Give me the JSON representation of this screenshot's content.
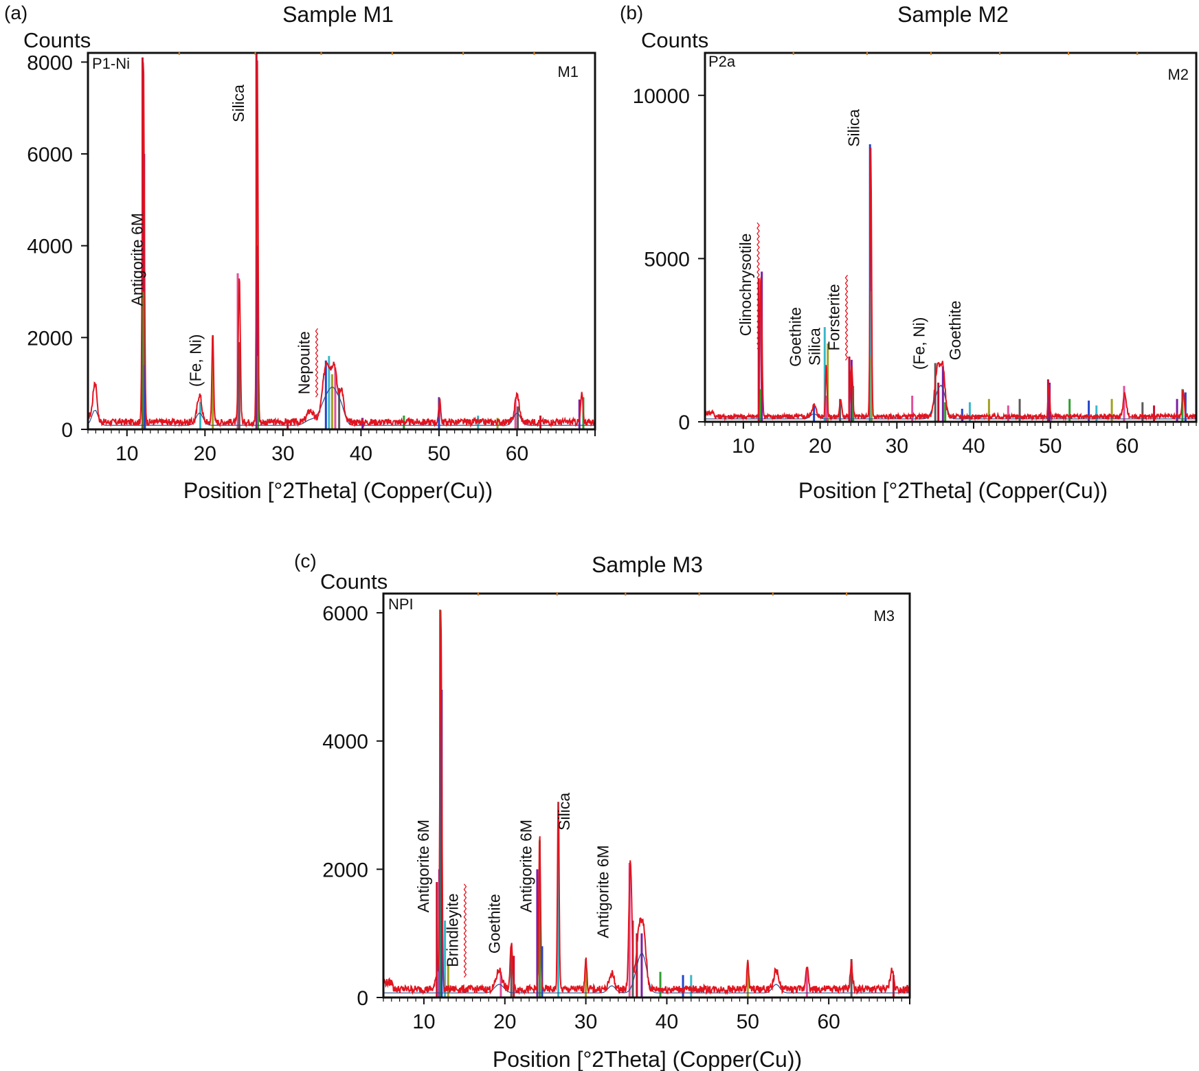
{
  "figure": {
    "colors": {
      "trace": "#e2141f",
      "baseline": "#2e4a8c",
      "frame": "#111111",
      "sticks": [
        "#c8102e",
        "#7a1fa2",
        "#2f9e2f",
        "#2244cc",
        "#38b8c8",
        "#a0a020",
        "#e0509a",
        "#5a5a5a"
      ],
      "hatch": "#e2141f"
    }
  },
  "chart_data": [
    {
      "type": "line",
      "panel_label": "(a)",
      "title": "Sample M1",
      "ylabel": "Counts",
      "xlabel": "Position [°2Theta] (Copper(Cu))",
      "corner_left": "P1-Ni",
      "corner_right": "M1",
      "xlim": [
        5,
        70
      ],
      "ylim": [
        0,
        8200
      ],
      "xticks": [
        10,
        20,
        30,
        40,
        50,
        60
      ],
      "yticks": [
        0,
        2000,
        4000,
        6000,
        8000
      ],
      "background": 160,
      "peaks": [
        [
          5.9,
          750,
          0.35
        ],
        [
          12.1,
          7950,
          0.18
        ],
        [
          19.3,
          600,
          0.4
        ],
        [
          21.0,
          1950,
          0.15
        ],
        [
          24.4,
          3200,
          0.18
        ],
        [
          26.7,
          8050,
          0.14
        ],
        [
          33.5,
          250,
          0.6
        ],
        [
          35.6,
          1300,
          0.7
        ],
        [
          36.6,
          1100,
          0.5
        ],
        [
          37.5,
          700,
          0.4
        ],
        [
          50.1,
          550,
          0.15
        ],
        [
          60.0,
          600,
          0.4
        ],
        [
          68.3,
          600,
          0.2
        ]
      ],
      "sticks": [
        [
          12.0,
          8100
        ],
        [
          12.2,
          6000
        ],
        [
          12.1,
          3000
        ],
        [
          12.3,
          1400
        ],
        [
          19.4,
          600
        ],
        [
          21.0,
          2050
        ],
        [
          24.2,
          3400
        ],
        [
          24.4,
          1900
        ],
        [
          26.6,
          8200
        ],
        [
          26.7,
          4000
        ],
        [
          26.8,
          1600
        ],
        [
          35.5,
          1500
        ],
        [
          35.9,
          1600
        ],
        [
          36.3,
          1200
        ],
        [
          36.7,
          1350
        ],
        [
          37.2,
          900
        ],
        [
          30.6,
          200
        ],
        [
          40.2,
          250
        ],
        [
          45.5,
          300
        ],
        [
          50.0,
          700
        ],
        [
          55.0,
          300
        ],
        [
          57.5,
          250
        ],
        [
          59.8,
          650
        ],
        [
          60.1,
          500
        ],
        [
          63.0,
          300
        ],
        [
          68.0,
          650
        ],
        [
          68.5,
          700
        ]
      ],
      "series_annotations": [
        {
          "text": "Antigorite 6M",
          "x": 12.0,
          "y": 3700,
          "hatched": false
        },
        {
          "text": "(Fe, Ni)",
          "x": 19.5,
          "y": 1500,
          "hatched": false
        },
        {
          "text": "Silica",
          "x": 25.0,
          "y": 7100,
          "hatched": false
        },
        {
          "text": "Nepouite",
          "x": 33.4,
          "y": 1450,
          "hatched": true
        }
      ]
    },
    {
      "type": "line",
      "panel_label": "(b)",
      "title": "Sample M2",
      "ylabel": "Counts",
      "xlabel": "Position [°2Theta] (Copper(Cu))",
      "corner_left": "P2a",
      "corner_right": "M2",
      "xlim": [
        5,
        69
      ],
      "ylim": [
        0,
        11300
      ],
      "xticks": [
        10,
        20,
        30,
        40,
        50,
        60
      ],
      "yticks": [
        0,
        5000,
        10000
      ],
      "background": 160,
      "peaks": [
        [
          12.3,
          4300,
          0.18
        ],
        [
          19.2,
          350,
          0.4
        ],
        [
          20.8,
          1600,
          0.15
        ],
        [
          22.7,
          500,
          0.2
        ],
        [
          24.1,
          1600,
          0.2
        ],
        [
          26.6,
          8200,
          0.14
        ],
        [
          35.3,
          1500,
          0.5
        ],
        [
          36.0,
          1400,
          0.4
        ],
        [
          49.8,
          1000,
          0.15
        ],
        [
          59.7,
          700,
          0.3
        ],
        [
          67.3,
          800,
          0.2
        ]
      ],
      "sticks": [
        [
          12.0,
          4400
        ],
        [
          12.4,
          4600
        ],
        [
          12.2,
          1000
        ],
        [
          19.2,
          500
        ],
        [
          20.6,
          2900
        ],
        [
          21.0,
          2400
        ],
        [
          20.8,
          800
        ],
        [
          22.6,
          700
        ],
        [
          23.8,
          2000
        ],
        [
          24.1,
          1900
        ],
        [
          24.3,
          1100
        ],
        [
          26.5,
          8500
        ],
        [
          26.6,
          4000
        ],
        [
          26.7,
          2000
        ],
        [
          32.0,
          800
        ],
        [
          35.0,
          1800
        ],
        [
          35.4,
          1200
        ],
        [
          36.0,
          1700
        ],
        [
          36.3,
          600
        ],
        [
          38.5,
          400
        ],
        [
          39.5,
          600
        ],
        [
          42.0,
          700
        ],
        [
          44.5,
          500
        ],
        [
          46.0,
          700
        ],
        [
          49.7,
          1300
        ],
        [
          49.9,
          1200
        ],
        [
          52.5,
          700
        ],
        [
          55.0,
          650
        ],
        [
          56.0,
          500
        ],
        [
          58.0,
          700
        ],
        [
          59.6,
          1100
        ],
        [
          62.0,
          600
        ],
        [
          63.5,
          500
        ],
        [
          66.5,
          700
        ],
        [
          67.2,
          1000
        ],
        [
          67.6,
          900
        ]
      ],
      "series_annotations": [
        {
          "text": "Clinochrysotile",
          "x": 11.0,
          "y": 4200,
          "hatched": true
        },
        {
          "text": "Goethite",
          "x": 17.5,
          "y": 2600,
          "hatched": false
        },
        {
          "text": "Silica",
          "x": 20.0,
          "y": 2300,
          "hatched": false
        },
        {
          "text": "Forsterite",
          "x": 22.5,
          "y": 3200,
          "hatched": true
        },
        {
          "text": "Silica",
          "x": 25.1,
          "y": 9000,
          "hatched": false
        },
        {
          "text": "(Fe, Ni)",
          "x": 33.6,
          "y": 2400,
          "hatched": false
        },
        {
          "text": "Goethite",
          "x": 38.3,
          "y": 2800,
          "hatched": false
        }
      ]
    },
    {
      "type": "line",
      "panel_label": "(c)",
      "title": "Sample M3",
      "ylabel": "Counts",
      "xlabel": "Position [°2Theta] (Copper(Cu))",
      "corner_left": "NPI",
      "corner_right": "M3",
      "xlim": [
        5,
        70
      ],
      "ylim": [
        0,
        6300
      ],
      "xticks": [
        10,
        20,
        30,
        40,
        50,
        60
      ],
      "yticks": [
        0,
        2000,
        4000,
        6000
      ],
      "background": 130,
      "peaks": [
        [
          11.7,
          300,
          0.3
        ],
        [
          12.1,
          5900,
          0.16
        ],
        [
          19.3,
          300,
          0.5
        ],
        [
          20.8,
          700,
          0.2
        ],
        [
          24.3,
          2400,
          0.15
        ],
        [
          26.6,
          2950,
          0.14
        ],
        [
          30.0,
          500,
          0.15
        ],
        [
          33.2,
          250,
          0.4
        ],
        [
          35.5,
          2000,
          0.25
        ],
        [
          36.6,
          950,
          0.5
        ],
        [
          37.2,
          700,
          0.4
        ],
        [
          50.0,
          450,
          0.15
        ],
        [
          53.5,
          300,
          0.4
        ],
        [
          57.3,
          400,
          0.2
        ],
        [
          62.8,
          400,
          0.2
        ],
        [
          67.8,
          300,
          0.3
        ]
      ],
      "sticks": [
        [
          11.6,
          1800
        ],
        [
          11.9,
          2000
        ],
        [
          12.0,
          6050
        ],
        [
          12.2,
          4800
        ],
        [
          12.6,
          1200
        ],
        [
          13.0,
          500
        ],
        [
          19.5,
          400
        ],
        [
          20.8,
          800
        ],
        [
          21.1,
          650
        ],
        [
          24.0,
          2000
        ],
        [
          24.3,
          2450
        ],
        [
          24.6,
          800
        ],
        [
          26.6,
          3050
        ],
        [
          30.0,
          600
        ],
        [
          35.4,
          2100
        ],
        [
          35.8,
          1200
        ],
        [
          36.3,
          1000
        ],
        [
          36.9,
          1000
        ],
        [
          39.2,
          400
        ],
        [
          42.0,
          350
        ],
        [
          43.0,
          350
        ],
        [
          50.0,
          550
        ],
        [
          57.3,
          450
        ],
        [
          62.8,
          600
        ],
        [
          68.0,
          350
        ]
      ],
      "series_annotations": [
        {
          "text": "Antigorite 6M",
          "x": 10.6,
          "y": 2050,
          "hatched": false
        },
        {
          "text": "Brindleyite",
          "x": 14.2,
          "y": 1050,
          "hatched": true
        },
        {
          "text": "Goethite",
          "x": 19.4,
          "y": 1150,
          "hatched": false
        },
        {
          "text": "Antigorite 6M",
          "x": 23.3,
          "y": 2050,
          "hatched": false
        },
        {
          "text": "Silica",
          "x": 28.0,
          "y": 2900,
          "hatched": false
        },
        {
          "text": "Antigorite 6M",
          "x": 32.8,
          "y": 1650,
          "hatched": false
        }
      ]
    }
  ]
}
